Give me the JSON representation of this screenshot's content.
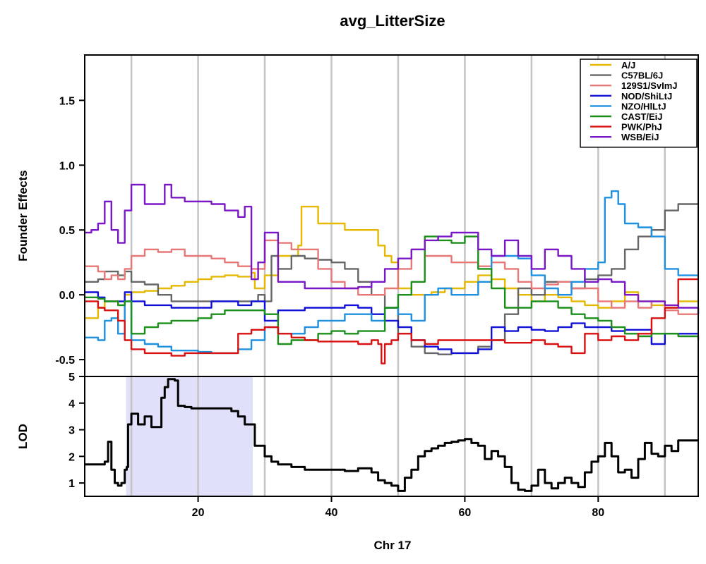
{
  "chart_data": [
    {
      "panel": "founder-effects",
      "type": "line",
      "title": "avg_LitterSize",
      "xlabel": "",
      "ylabel": "Founder Effects",
      "xlim": [
        3,
        95
      ],
      "ylim": [
        -0.63,
        1.85
      ],
      "yticks": [
        -0.5,
        0.0,
        0.5,
        1.0,
        1.5
      ],
      "ytick_labels": [
        "-0.5",
        "0.0",
        "0.5",
        "1.0",
        "1.5"
      ],
      "grid_x": [
        10,
        20,
        30,
        40,
        50,
        60,
        70,
        80,
        90
      ],
      "legend_position": "top-right",
      "series": [
        {
          "name": "A/J",
          "color": "#E6B800",
          "x": [
            3,
            5,
            6,
            8,
            9,
            10,
            12,
            14,
            16,
            18,
            20,
            22,
            24,
            26,
            28,
            28.5,
            30,
            32,
            34,
            35,
            35.5,
            37,
            38,
            40,
            42,
            45,
            47,
            48,
            49,
            50,
            52,
            55,
            57,
            60,
            62,
            64,
            66,
            68,
            70,
            72,
            74,
            76,
            78,
            80,
            82,
            84,
            86,
            88,
            90,
            92,
            95
          ],
          "y": [
            -0.18,
            -0.1,
            -0.05,
            -0.08,
            0.0,
            0.02,
            0.03,
            0.05,
            0.07,
            0.1,
            0.12,
            0.14,
            0.15,
            0.14,
            0.17,
            0.05,
            0.15,
            0.3,
            0.3,
            0.38,
            0.68,
            0.68,
            0.55,
            0.55,
            0.5,
            0.5,
            0.38,
            0.3,
            0.25,
            0.05,
            0.0,
            0.02,
            0.05,
            0.1,
            0.15,
            0.12,
            0.05,
            0.0,
            -0.05,
            0.0,
            -0.02,
            -0.05,
            -0.08,
            -0.1,
            -0.05,
            0.02,
            -0.05,
            -0.08,
            -0.1,
            -0.05,
            -0.04
          ]
        },
        {
          "name": "C57BL/6J",
          "color": "#666666",
          "x": [
            3,
            5,
            6,
            8,
            9,
            10,
            12,
            14,
            16,
            20,
            24,
            28,
            29,
            30,
            31,
            32,
            34,
            36,
            38,
            40,
            42,
            44,
            46,
            48,
            50,
            52,
            54,
            56,
            58,
            60,
            62,
            64,
            66,
            68,
            70,
            72,
            74,
            76,
            78,
            80,
            82,
            84,
            86,
            88,
            90,
            92,
            95
          ],
          "y": [
            0.1,
            0.12,
            0.18,
            0.15,
            0.18,
            0.1,
            0.08,
            0.0,
            -0.05,
            -0.05,
            -0.05,
            -0.05,
            0.0,
            -0.05,
            0.3,
            0.2,
            0.3,
            0.28,
            0.27,
            0.25,
            0.2,
            0.1,
            0.0,
            -0.1,
            -0.3,
            -0.4,
            -0.45,
            -0.46,
            -0.45,
            -0.45,
            -0.4,
            -0.35,
            -0.15,
            0.05,
            0.0,
            0.1,
            0.1,
            0.05,
            0.12,
            0.15,
            0.2,
            0.35,
            0.45,
            0.5,
            0.65,
            0.7,
            0.7
          ]
        },
        {
          "name": "129S1/SvImJ",
          "color": "#E87878",
          "x": [
            3,
            5,
            6,
            7,
            8,
            9,
            10,
            12,
            14,
            16,
            18,
            20,
            22,
            24,
            26,
            28,
            30,
            32,
            34,
            36,
            38,
            40,
            42,
            44,
            46,
            48,
            50,
            52,
            54,
            56,
            58,
            60,
            62,
            64,
            66,
            68,
            70,
            72,
            74,
            76,
            78,
            80,
            82,
            84,
            86,
            88,
            90,
            92,
            95
          ],
          "y": [
            0.22,
            0.18,
            0.12,
            0.15,
            0.12,
            0.2,
            0.3,
            0.35,
            0.33,
            0.35,
            0.3,
            0.3,
            0.28,
            0.25,
            0.22,
            0.2,
            0.42,
            0.4,
            0.35,
            0.35,
            0.2,
            0.1,
            0.05,
            0.0,
            0.0,
            0.05,
            0.2,
            0.35,
            0.3,
            0.3,
            0.25,
            0.25,
            0.22,
            0.25,
            0.2,
            0.1,
            0.05,
            0.08,
            0.1,
            0.05,
            0.05,
            -0.05,
            -0.1,
            -0.05,
            -0.1,
            -0.05,
            -0.12,
            -0.15,
            -0.15
          ]
        },
        {
          "name": "NOD/ShiLtJ",
          "color": "#1010D8",
          "x": [
            3,
            5,
            6,
            8,
            9,
            10,
            12,
            14,
            16,
            18,
            20,
            22,
            24,
            26,
            28,
            30,
            32,
            34,
            36,
            38,
            40,
            42,
            44,
            46,
            48,
            50,
            52,
            54,
            56,
            58,
            60,
            62,
            64,
            66,
            68,
            70,
            72,
            74,
            76,
            78,
            80,
            82,
            84,
            86,
            88,
            90,
            92,
            95
          ],
          "y": [
            0.02,
            -0.02,
            -0.05,
            -0.05,
            0.02,
            -0.05,
            -0.08,
            -0.08,
            -0.1,
            -0.1,
            -0.1,
            -0.05,
            -0.05,
            -0.08,
            -0.05,
            -0.2,
            -0.12,
            -0.12,
            -0.1,
            -0.1,
            -0.1,
            -0.08,
            -0.1,
            -0.15,
            -0.2,
            -0.25,
            -0.35,
            -0.4,
            -0.42,
            -0.45,
            -0.45,
            -0.42,
            -0.25,
            -0.28,
            -0.25,
            -0.27,
            -0.28,
            -0.25,
            -0.22,
            -0.25,
            -0.25,
            -0.28,
            -0.27,
            -0.27,
            -0.38,
            -0.3,
            -0.3,
            -0.3
          ]
        },
        {
          "name": "NZO/HlLtJ",
          "color": "#1E90E0",
          "x": [
            3,
            5,
            6,
            7,
            8,
            9,
            10,
            12,
            14,
            16,
            18,
            20,
            22,
            24,
            26,
            28,
            30,
            32,
            34,
            36,
            38,
            40,
            42,
            44,
            46,
            48,
            50,
            52,
            54,
            56,
            58,
            60,
            62,
            64,
            66,
            68,
            70,
            72,
            74,
            76,
            78,
            80,
            81,
            82,
            83,
            84,
            86,
            88,
            90,
            92,
            95
          ],
          "y": [
            -0.33,
            -0.35,
            -0.2,
            -0.18,
            -0.3,
            -0.05,
            -0.35,
            -0.38,
            -0.4,
            -0.43,
            -0.43,
            -0.44,
            -0.45,
            -0.45,
            -0.42,
            -0.35,
            -0.25,
            -0.3,
            -0.3,
            -0.25,
            -0.2,
            -0.2,
            -0.15,
            -0.15,
            -0.2,
            -0.1,
            -0.15,
            -0.2,
            0.0,
            0.05,
            0.0,
            0.0,
            0.1,
            0.3,
            0.3,
            0.28,
            0.15,
            0.05,
            0.0,
            0.1,
            0.2,
            0.25,
            0.75,
            0.8,
            0.7,
            0.55,
            0.52,
            0.45,
            0.2,
            0.15,
            0.15
          ]
        },
        {
          "name": "CAST/EiJ",
          "color": "#1A8F1A",
          "x": [
            3,
            5,
            6,
            8,
            9,
            10,
            12,
            14,
            16,
            18,
            20,
            22,
            24,
            26,
            28,
            30,
            32,
            34,
            36,
            38,
            40,
            42,
            44,
            46,
            48,
            50,
            52,
            54,
            56,
            58,
            60,
            62,
            64,
            66,
            68,
            70,
            72,
            74,
            76,
            78,
            80,
            82,
            84,
            86,
            88,
            90,
            92,
            95
          ],
          "y": [
            -0.02,
            -0.03,
            -0.05,
            -0.08,
            -0.05,
            -0.3,
            -0.25,
            -0.22,
            -0.2,
            -0.2,
            -0.18,
            -0.15,
            -0.12,
            -0.12,
            -0.12,
            -0.15,
            -0.38,
            -0.35,
            -0.35,
            -0.3,
            -0.28,
            -0.3,
            -0.28,
            -0.28,
            -0.1,
            0.0,
            0.1,
            0.45,
            0.42,
            0.4,
            0.45,
            0.2,
            0.05,
            -0.1,
            -0.1,
            -0.05,
            -0.05,
            -0.1,
            -0.15,
            -0.18,
            -0.2,
            -0.25,
            -0.3,
            -0.32,
            -0.3,
            -0.3,
            -0.32,
            -0.35
          ]
        },
        {
          "name": "PWK/PhJ",
          "color": "#D81010",
          "x": [
            3,
            5,
            6,
            8,
            9,
            10,
            12,
            14,
            16,
            18,
            20,
            22,
            24,
            26,
            28,
            30,
            32,
            34,
            36,
            38,
            40,
            42,
            44,
            46,
            47,
            47.5,
            48,
            49,
            50,
            52,
            54,
            56,
            58,
            60,
            62,
            64,
            66,
            68,
            70,
            72,
            74,
            76,
            78,
            80,
            82,
            84,
            86,
            88,
            90,
            92,
            95
          ],
          "y": [
            -0.05,
            -0.1,
            -0.12,
            -0.2,
            -0.35,
            -0.42,
            -0.45,
            -0.45,
            -0.47,
            -0.45,
            -0.45,
            -0.45,
            -0.45,
            -0.3,
            -0.27,
            -0.25,
            -0.3,
            -0.33,
            -0.35,
            -0.36,
            -0.36,
            -0.36,
            -0.38,
            -0.35,
            -0.38,
            -0.53,
            -0.38,
            -0.35,
            -0.3,
            -0.35,
            -0.38,
            -0.35,
            -0.35,
            -0.35,
            -0.35,
            -0.35,
            -0.37,
            -0.37,
            -0.35,
            -0.38,
            -0.4,
            -0.45,
            -0.3,
            -0.35,
            -0.32,
            -0.35,
            -0.3,
            -0.18,
            -0.1,
            0.12,
            0.12
          ]
        },
        {
          "name": "WSB/EiJ",
          "color": "#7A18C8",
          "x": [
            3,
            4,
            5,
            6,
            7,
            8,
            9,
            10,
            12,
            14,
            15,
            16,
            17,
            18,
            20,
            22,
            24,
            26,
            27,
            28,
            29,
            30,
            32,
            34,
            36,
            38,
            40,
            42,
            44,
            46,
            48,
            50,
            52,
            54,
            56,
            58,
            60,
            62,
            64,
            66,
            68,
            70,
            72,
            74,
            76,
            78,
            80,
            82,
            84,
            86,
            88,
            90,
            92,
            95
          ],
          "y": [
            0.48,
            0.5,
            0.55,
            0.72,
            0.5,
            0.4,
            0.65,
            0.85,
            0.7,
            0.7,
            0.85,
            0.75,
            0.75,
            0.72,
            0.72,
            0.7,
            0.65,
            0.6,
            0.68,
            0.12,
            0.25,
            0.48,
            0.1,
            0.1,
            0.05,
            0.05,
            0.05,
            0.05,
            0.06,
            0.1,
            0.2,
            0.28,
            0.35,
            0.42,
            0.45,
            0.48,
            0.48,
            0.35,
            0.3,
            0.42,
            0.3,
            0.2,
            0.35,
            0.3,
            0.2,
            0.1,
            0.12,
            0.1,
            0.0,
            -0.05,
            -0.05,
            -0.08,
            -0.1,
            -0.15
          ]
        }
      ]
    },
    {
      "panel": "lod",
      "type": "line",
      "title": "",
      "xlabel": "Chr 17",
      "ylabel": "LOD",
      "xlim": [
        3,
        95
      ],
      "ylim": [
        0.5,
        5.0
      ],
      "xticks": [
        20,
        40,
        60,
        80
      ],
      "xtick_labels": [
        "20",
        "40",
        "60",
        "80"
      ],
      "yticks": [
        1,
        2,
        3,
        4,
        5
      ],
      "ytick_labels": [
        "1",
        "2",
        "3",
        "4",
        "5"
      ],
      "grid_x": [
        10,
        20,
        30,
        40,
        50,
        60,
        70,
        80,
        90
      ],
      "highlight_interval": [
        9.2,
        28.2
      ],
      "highlight_color": "#E0E0FA",
      "series": [
        {
          "color": "#000000",
          "x": [
            3,
            5,
            5.5,
            6,
            6.5,
            7,
            7.5,
            8,
            8.5,
            9,
            9.3,
            9.5,
            10,
            10.5,
            11,
            12,
            13,
            14,
            14.5,
            15,
            15.5,
            16,
            16.5,
            17,
            18,
            19,
            20,
            22,
            24,
            25,
            26,
            27,
            28,
            28.5,
            29,
            30,
            31,
            32,
            34,
            36,
            38,
            40,
            42,
            44,
            46,
            47,
            48,
            49,
            50,
            51,
            52,
            53,
            54,
            55,
            56,
            57,
            58,
            59,
            60,
            61,
            62,
            63,
            64,
            65,
            66,
            67,
            68,
            69,
            70,
            71,
            72,
            73,
            74,
            75,
            76,
            77,
            78,
            79,
            80,
            81,
            82,
            83,
            84,
            85,
            86,
            87,
            88,
            89,
            90,
            91,
            92,
            95
          ],
          "y": [
            1.7,
            1.7,
            1.7,
            1.8,
            2.55,
            1.5,
            1.0,
            0.9,
            1.0,
            1.5,
            1.6,
            3.2,
            3.6,
            3.6,
            3.2,
            3.5,
            3.1,
            3.1,
            4.2,
            4.6,
            4.9,
            4.9,
            4.85,
            3.9,
            3.85,
            3.8,
            3.8,
            3.8,
            3.8,
            3.7,
            3.5,
            3.2,
            3.2,
            2.4,
            2.4,
            2.0,
            1.8,
            1.7,
            1.6,
            1.5,
            1.5,
            1.5,
            1.45,
            1.55,
            1.4,
            1.1,
            1.0,
            0.9,
            0.7,
            1.2,
            1.5,
            2.0,
            2.2,
            2.3,
            2.4,
            2.5,
            2.55,
            2.6,
            2.65,
            2.5,
            2.4,
            1.9,
            2.2,
            2.0,
            1.6,
            1.0,
            0.75,
            0.7,
            0.9,
            1.5,
            1.0,
            0.8,
            1.0,
            1.2,
            1.0,
            0.85,
            1.4,
            1.8,
            2.0,
            2.5,
            2.0,
            1.4,
            1.5,
            1.2,
            1.9,
            2.5,
            2.1,
            2.0,
            2.4,
            2.2,
            2.6,
            2.6
          ]
        }
      ]
    }
  ]
}
